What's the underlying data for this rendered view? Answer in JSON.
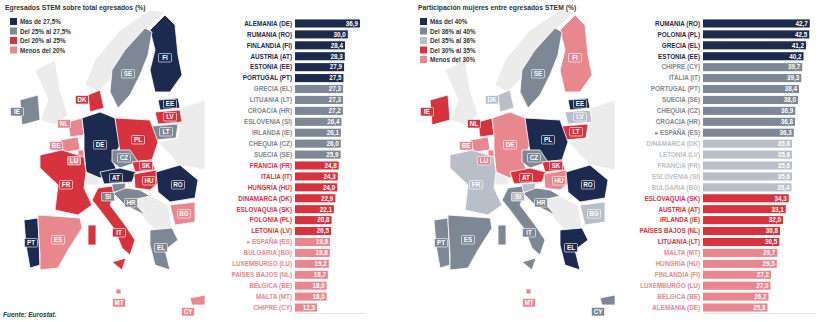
{
  "chart_data": [
    {
      "type": "bar",
      "title": "Egresados STEM sobre total egresados (%)",
      "orientation": "horizontal",
      "categories": [
        "ALEMANIA (DE)",
        "RUMANIA (RO)",
        "FINLANDIA (FI)",
        "AUSTRIA (AT)",
        "ESTONIA (EE)",
        "PORTUGAL (PT)",
        "GRECIA (EL)",
        "LITUANIA (LT)",
        "CROACIA (HR)",
        "ESLOVENIA (SI)",
        "IRLANDA (IE)",
        "CHEQUIA (CZ)",
        "SUECIA (SE)",
        "FRANCIA (FR)",
        "ITALIA (IT)",
        "HUNGRÍA (HU)",
        "DINAMARCA (DK)",
        "ESLOVAQUIA (SK)",
        "POLONIA (PL)",
        "LETONIA (LV)",
        "▸ ESPAÑA (ES)",
        "BULGARIA (BG)",
        "LUXEMBURGO (LU)",
        "PAÍSES BAJOS (NL)",
        "BÉLGICA (BE)",
        "MALTA (MT)",
        "CHIPRE (CY)"
      ],
      "values": [
        36.9,
        30.0,
        28.4,
        28.3,
        27.9,
        27.5,
        27.3,
        27.3,
        27.2,
        26.4,
        26.1,
        26.0,
        25.9,
        24.8,
        24.3,
        24.0,
        22.9,
        22.1,
        20.8,
        20.5,
        19.9,
        19.8,
        19.2,
        18.7,
        18.0,
        18.0,
        12.5
      ],
      "value_labels": [
        "36,9",
        "30,0",
        "28,4",
        "28,3",
        "27,9",
        "27,5",
        "27,3",
        "27,3",
        "27,2",
        "26,4",
        "26,1",
        "26,0",
        "25,9",
        "24,8",
        "24,3",
        "24,0",
        "22,9",
        "22,1",
        "20,8",
        "20,5",
        "19,9",
        "19,8",
        "19,2",
        "18,7",
        "18,0",
        "18,0",
        "12,5"
      ],
      "colors": [
        "#1d2a4f",
        "#1d2a4f",
        "#1d2a4f",
        "#1d2a4f",
        "#1d2a4f",
        "#1d2a4f",
        "#7e8794",
        "#7e8794",
        "#7e8794",
        "#7e8794",
        "#7e8794",
        "#7e8794",
        "#7e8794",
        "#d7333f",
        "#d7333f",
        "#d7333f",
        "#d7333f",
        "#d7333f",
        "#d7333f",
        "#d7333f",
        "#e8878e",
        "#e8878e",
        "#e8878e",
        "#e8878e",
        "#e8878e",
        "#e8878e",
        "#e8878e"
      ],
      "xlim": [
        0,
        40
      ],
      "data_labels": true,
      "tick_labels": "y"
    },
    {
      "type": "bar",
      "title": "Participación mujeres entre egresados STEM (%)",
      "orientation": "horizontal",
      "categories": [
        "RUMANIA (RO)",
        "POLONIA (PL)",
        "GRECIA (EL)",
        "ESTONIA (EE)",
        "CHIPRE (CY)",
        "ITALIA (IT)",
        "PORTUGAL (PT)",
        "SUECIA (SE)",
        "CHEQUIA (CZ)",
        "CROACIA (HR)",
        "▸ ESPAÑA (ES)",
        "DINAMARCA (DK)",
        "LETONIA (LV)",
        "FRANCIA (FR)",
        "ESLOVENIA (SI)",
        "BULGARIA (BG)",
        "ESLOVAQUIA (SK)",
        "AUSTRIA (AT)",
        "IRLANDA (IE)",
        "PAÍSES BAJOS (NL)",
        "LITUANIA (LT)",
        "MALTA (MT)",
        "HUNGRÍA (HU)",
        "FINLANDIA (FI)",
        "LUXEMBURGO (LU)",
        "BÉLGICA (BE)",
        "ALEMANIA (DE)"
      ],
      "values": [
        42.7,
        42.5,
        41.2,
        40.2,
        39.7,
        39.3,
        38.4,
        38.0,
        36.9,
        36.8,
        36.3,
        35.6,
        35.6,
        35.6,
        35.6,
        35.4,
        34.3,
        33.1,
        32.0,
        30.8,
        30.5,
        29.7,
        29.5,
        27.2,
        27.0,
        26.2,
        25.8
      ],
      "value_labels": [
        "42,7",
        "42,5",
        "41,2",
        "40,2",
        "39,7",
        "39,3",
        "38,4",
        "38,0",
        "36,9",
        "36,8",
        "36,3",
        "35,6",
        "35,6",
        "35,6",
        "35,6",
        "35,4",
        "34,3",
        "33,1",
        "32,0",
        "30,8",
        "30,5",
        "29,7",
        "29,5",
        "27,2",
        "27,0",
        "26,2",
        "25,8"
      ],
      "colors": [
        "#1d2a4f",
        "#1d2a4f",
        "#1d2a4f",
        "#1d2a4f",
        "#7e8794",
        "#7e8794",
        "#7e8794",
        "#7e8794",
        "#7e8794",
        "#7e8794",
        "#7e8794",
        "#b9bfc8",
        "#b9bfc8",
        "#b9bfc8",
        "#b9bfc8",
        "#b9bfc8",
        "#d7333f",
        "#d7333f",
        "#d7333f",
        "#d7333f",
        "#d7333f",
        "#e8878e",
        "#e8878e",
        "#e8878e",
        "#e8878e",
        "#e8878e",
        "#e8878e"
      ],
      "xlim": [
        0,
        45
      ],
      "data_labels": true,
      "tick_labels": "y"
    }
  ],
  "legends": [
    [
      {
        "label": "Más de 27,5%",
        "color": "#1d2a4f"
      },
      {
        "label": "Del 25% al 27,5%",
        "color": "#7e8794"
      },
      {
        "label": "Del 20% al 25%",
        "color": "#d7333f"
      },
      {
        "label": "Menos del 20%",
        "color": "#e8878e"
      }
    ],
    [
      {
        "label": "Más del 40%",
        "color": "#1d2a4f"
      },
      {
        "label": "Del 36% al 40%",
        "color": "#7e8794"
      },
      {
        "label": "Del 35% al 36%",
        "color": "#b9bfc8"
      },
      {
        "label": "Del 30% al 35%",
        "color": "#d7333f"
      },
      {
        "label": "Menos del 30%",
        "color": "#e8878e"
      }
    ]
  ],
  "map_labels": [
    [
      "FI",
      "SE",
      "EE",
      "LV",
      "LT",
      "DK",
      "IE",
      "NL",
      "BE",
      "LU",
      "DE",
      "PL",
      "CZ",
      "SK",
      "AT",
      "HU",
      "SI",
      "HR",
      "RO",
      "BG",
      "FR",
      "PT",
      "ES",
      "IT",
      "EL",
      "MT",
      "CY"
    ],
    [
      "FI",
      "SE",
      "EE",
      "LV",
      "LT",
      "DK",
      "IE",
      "NL",
      "BE",
      "LU",
      "DE",
      "PL",
      "CZ",
      "SK",
      "AT",
      "HU",
      "SI",
      "HR",
      "RO",
      "BG",
      "FR",
      "PT",
      "ES",
      "IT",
      "EL",
      "MT",
      "CY"
    ]
  ],
  "source": "Fuente: Eurostat."
}
